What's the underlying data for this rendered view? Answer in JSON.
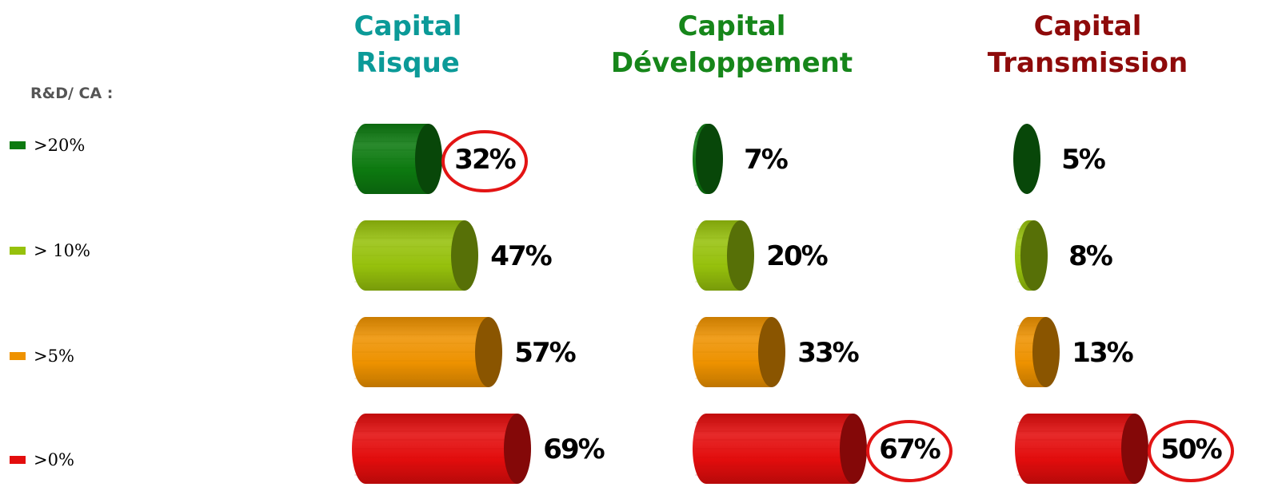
{
  "chart_data": {
    "type": "bar",
    "orientation": "horizontal",
    "legend_title": "R&D/ CA :",
    "categories": [
      ">20%",
      "> 10%",
      ">5%",
      ">0%"
    ],
    "colors": [
      "#0d7a10",
      "#96c10c",
      "#ee9200",
      "#e30d0d"
    ],
    "series": [
      {
        "name_lines": [
          "Capital",
          "Risque"
        ],
        "title_color": "#0b9a98",
        "values": [
          32,
          47,
          57,
          69
        ],
        "labels": [
          "32%",
          "47%",
          "57%",
          "69%"
        ],
        "circled": [
          0
        ]
      },
      {
        "name_lines": [
          "Capital",
          "Développement"
        ],
        "title_color": "#16861a",
        "values": [
          7,
          20,
          33,
          67
        ],
        "labels": [
          "7%",
          "20%",
          "33%",
          "67%"
        ],
        "circled": [
          3
        ]
      },
      {
        "name_lines": [
          "Capital",
          "Transmission"
        ],
        "title_color": "#8e0a0a",
        "values": [
          5,
          8,
          13,
          50
        ],
        "labels": [
          "5%",
          "8%",
          "13%",
          "50%"
        ],
        "circled": [
          3
        ]
      }
    ],
    "grid": false,
    "legend_position": "left"
  }
}
